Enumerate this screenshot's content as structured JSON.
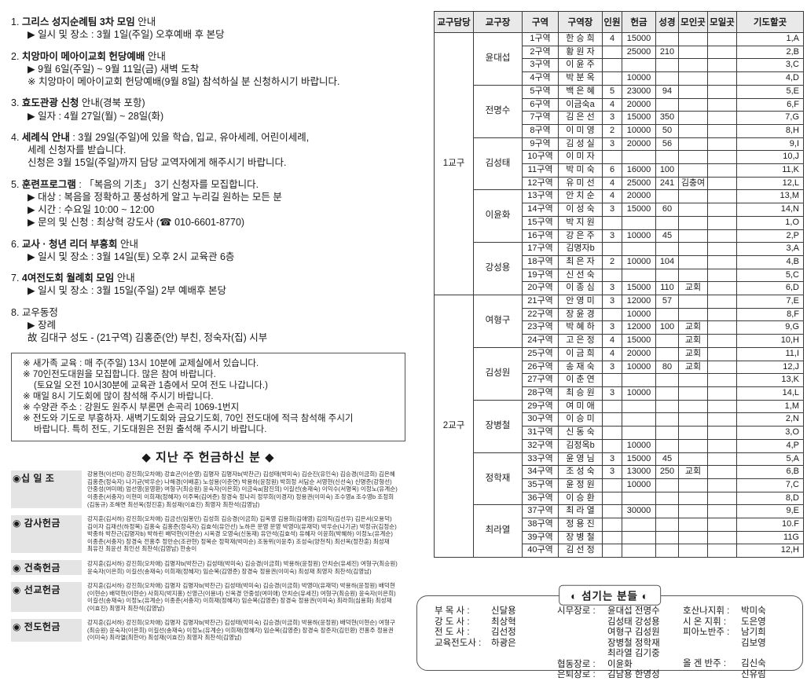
{
  "announcements": {
    "items": [
      {
        "num": "1.",
        "bold": "그리스 성지순례팀 3차 모임",
        "rest": " 안내",
        "lines": [
          {
            "t": "▶ 일시 및 장소 : 3월 1일(주일) 오후예배 후 본당",
            "i": 0
          }
        ]
      },
      {
        "num": "2.",
        "bold": "치앙마이 메아이교회 헌당예배",
        "rest": " 안내",
        "lines": [
          {
            "t": "▶ 9월 6일(주일) ~ 9월 11일(금) 새벽 도착",
            "i": 0
          },
          {
            "t": "※ 치앙마이 메아이교회 헌당예배(9월 8일) 참석하실 분 신청하시기 바랍니다.",
            "i": 0
          }
        ]
      },
      {
        "num": "3.",
        "bold": "효도관광 신청",
        "rest": " 안내(경북 포항)",
        "lines": [
          {
            "t": "▶ 일자 : 4월 27일(월) ~ 28일(화)",
            "i": 0
          }
        ]
      },
      {
        "num": "4.",
        "bold": "세례식 안내",
        "rest": " : 3월 29일(주일)에 있을 학습, 입교, 유아세례, 어린이세례,",
        "lines": [
          {
            "t": "세례 신청자를 받습니다.",
            "i": 0
          },
          {
            "t": "신청은 3월 15일(주일)까지 담당 교역자에게 해주시기 바랍니다.",
            "i": 0
          }
        ]
      },
      {
        "num": "5.",
        "bold": "훈련프로그램",
        "rest": " : 「복음의 기초」 3기 신청자를 모집합니다.",
        "lines": [
          {
            "t": "▶ 대상 : 복음을 정확하고 풍성하게 알고 누리길 원하는 모든 분",
            "i": 0
          },
          {
            "t": "▶ 시간 : 수요일 10:00 ~ 12:00",
            "i": 0
          },
          {
            "t": "▶ 문의 및 신청 : 최상혁 강도사 (☎ 010-6601-8770)",
            "i": 0
          }
        ]
      },
      {
        "num": "6.",
        "bold": "교사 · 청년 리더 부흥회",
        "rest": " 안내",
        "lines": [
          {
            "t": "▶ 일시 및 장소 : 3월 14일(토) 오후 2시 교육관 6층",
            "i": 0
          }
        ]
      },
      {
        "num": "7.",
        "bold": "4여전도회 월례회 모임",
        "rest": " 안내",
        "lines": [
          {
            "t": "▶ 일시 및 장소 : 3월 15일(주일) 2부 예배후 본당",
            "i": 0
          }
        ]
      },
      {
        "num": "8.",
        "bold": "",
        "rest": "교우동정",
        "lines": [
          {
            "t": "▶ 장례",
            "i": 0
          },
          {
            "t": "故 김대구 성도 - (21구역) 김홍준(안) 부친, 정숙자(집) 시부",
            "i": 0
          }
        ]
      }
    ]
  },
  "notice_box": {
    "lines": [
      {
        "t": "※ 새가족 교육 : 매 주(주일) 13시 10분에 교제실에서 있습니다.",
        "i": 0
      },
      {
        "t": "※ 70인전도대원을 모집합니다. 많은 참여 바랍니다.",
        "i": 0
      },
      {
        "t": "(토요일 오전 10시30분에 교육관 1층에서 모여 전도 나갑니다.)",
        "i": 1
      },
      {
        "t": "※ 매일 8시 기도회에 많이 참석해 주시기 바랍니다.",
        "i": 0
      },
      {
        "t": "※ 수양관 주소 : 강원도 원주시 부론면 손곡리 1069-1번지",
        "i": 0
      },
      {
        "t": "※ 전도와 기도로 부흥하자. 새벽기도회와 금요기도회, 70인 전도대에 적극 참석해 주시기",
        "i": 0
      },
      {
        "t": "바랍니다. 특히 전도, 기도대원은 전원 출석해 주시기 바랍니다.",
        "i": 1
      }
    ]
  },
  "offering": {
    "heading": "◆ 지난 주 헌금하신 분 ◆",
    "categories": [
      {
        "label": "◉십 일 조",
        "names": "강용현(이선미) 강진희(오차애) 강효곤(이순영) 김명자 김명자b(박찬근) 김성태(박미숙) 김순진(유인숙) 김승경(이금희) 김은혜 김홍준(정숙자) 나기균(박우순) 나해경(이배훈) 노성용(이춘연) 박용하(윤정원) 박희정 서담순 서영현(신선숙) 신명준(강형선) 안중성(여미애) 엄선영(윤영환) 여형구(최승원) 윤숙자(이은회) 이금숙a(함진의) 이길선(송재숙) 이익수(서명옥) 이정노(유계순) 이종춘(서충자) 이현미 이희재(정혜자) 이주복(김여준) 장경숙 정나리 정무희(이경자) 정용권(이미숙) 조수영a 조수영b 조정희(김동규) 조해연 최선옥(정진훈) 최성재(이효진) 최영자 최찬석(김영남)"
      },
      {
        "label": "◉ 감사헌금",
        "names": "강지훈(김서하) 강진희(오차애) 김금선(임봉민) 김성희 김승경(이금희) 김옥영 김용희(김애영) 김의직(김선우) 김은서(오용덕) 김이자 김재선(하정복) 김홍숙 김홍준(정숙자) 김효석(유안선) 노하은 문영 문영 박영미(유재덕) 박우순(나기균) 박정규(김정순) 박종하 박찬근(김명자b) 박하린 배덕현(이현순) 시옥경 오영숙(신동재) 유안석(김효석) 유혜자 이윤희(박혜하) 이정노(유계순) 이종춘(서충자) 장경숙 전홍주 정만순(조관현) 정복순 정학재(박미순) 조동위(이윤주) 조성숙(양천직) 최선옥(정찬훈) 최성재 최유진 최윤선 최인선 최찬석(김영남) 한송이"
      },
      {
        "label": "◉ 건축헌금",
        "names": "강지훈(김서하) 강진희(오차애) 김명자b(박찬근) 김성태(박미숙) 김승경(이금희) 박용하(윤정원) 안치순(유세진) 여형구(최승원) 윤숙자(이은희) 이길선(송재숙) 이희재(정혜자) 임순복(김영준) 장경숙 정용권(이미숙) 최성재 최영자 최찬석(김영남)"
      },
      {
        "label": "◉ 선교헌금",
        "names": "강지훈(김서하) 강진희(오차애) 김명자 김명자b(박찬근) 김성태(박미숙) 김승경(이금희) 박영미(유재덕) 박용하(윤정원) 배덕현(이현순) 배덕현(이현순) 사회지(박지홍) 신영근(이용녀) 신옥경 안중성(여미애) 안치순(유세진) 여형구(최승원) 윤숙자(이은희) 이길선(송재숙) 이정노(유계순) 이종춘(서충자) 이희재(정혜자) 임순복(김영준) 장경숙 정용권(이미숙) 최라희(심용화) 최성재(이효진) 최영자 최찬석(김영남)"
      },
      {
        "label": "◉ 전도헌금",
        "names": "강지훈(김서하) 강진희(오차애) 김명자 김명자b(박찬근) 김성태(박미숙) 김승경(이금희) 박용하(윤정원) 배덕현(이현순) 여형구(최승원) 윤숙자(이은희) 이길선(송재숙) 이정노(유계순) 이희재(정혜자) 임순복(김영준) 장경숙 장준자(김민환) 전홍주 정용권(이미숙) 최라열(최한아) 최성재(이효진) 최영자 최찬석(김영남)"
      }
    ]
  },
  "table": {
    "headers": [
      "교구담당",
      "교구장",
      "구역",
      "구역장",
      "인원",
      "헌금",
      "성경",
      "모인곳",
      "모일곳",
      "기도할곳"
    ],
    "groups": [
      {
        "name": "1교구",
        "leaders": [
          "윤대섭",
          "전명수",
          "김성태",
          "이윤화",
          "강성용"
        ]
      },
      {
        "name": "2교구",
        "leaders": [
          "여형구",
          "김성원",
          "장병철",
          "정학재",
          "최라열"
        ]
      }
    ],
    "rows": [
      [
        "1구역",
        "한 승 희",
        "4",
        "15000",
        "",
        "",
        "",
        "1,A"
      ],
      [
        "2구역",
        "황 원 자",
        "",
        "25000",
        "210",
        "",
        "",
        "2,B"
      ],
      [
        "3구역",
        "이 윤 주",
        "",
        "",
        "",
        "",
        "",
        "3,C"
      ],
      [
        "4구역",
        "박 분 옥",
        "",
        "10000",
        "",
        "",
        "",
        "4,D"
      ],
      [
        "5구역",
        "백 은 혜",
        "5",
        "23000",
        "94",
        "",
        "",
        "5,E"
      ],
      [
        "6구역",
        "이금숙a",
        "4",
        "20000",
        "",
        "",
        "",
        "6,F"
      ],
      [
        "7구역",
        "김 은 선",
        "3",
        "15000",
        "350",
        "",
        "",
        "7,G"
      ],
      [
        "8구역",
        "이 미 영",
        "2",
        "10000",
        "50",
        "",
        "",
        "8,H"
      ],
      [
        "9구역",
        "김 성 실",
        "3",
        "20000",
        "56",
        "",
        "",
        "9,I"
      ],
      [
        "10구역",
        "이 미 자",
        "",
        "",
        "",
        "",
        "",
        "10,J"
      ],
      [
        "11구역",
        "박 미 숙",
        "6",
        "16000",
        "100",
        "",
        "",
        "11,K"
      ],
      [
        "12구역",
        "유 미 선",
        "4",
        "25000",
        "241",
        "김충여",
        "",
        "12,L"
      ],
      [
        "13구역",
        "안 치 순",
        "4",
        "20000",
        "",
        "",
        "",
        "13,M"
      ],
      [
        "14구역",
        "이 성 숙",
        "3",
        "15000",
        "60",
        "",
        "",
        "14,N"
      ],
      [
        "15구역",
        "박 지 원",
        "",
        "",
        "",
        "",
        "",
        "1,O"
      ],
      [
        "16구역",
        "강 은 주",
        "3",
        "10000",
        "45",
        "",
        "",
        "2,P"
      ],
      [
        "17구역",
        "김명자b",
        "",
        "",
        "",
        "",
        "",
        "3,A"
      ],
      [
        "18구역",
        "최 은 자",
        "2",
        "10000",
        "104",
        "",
        "",
        "4,B"
      ],
      [
        "19구역",
        "신 선 숙",
        "",
        "",
        "",
        "",
        "",
        "5,C"
      ],
      [
        "20구역",
        "이 종 심",
        "3",
        "15000",
        "110",
        "교회",
        "",
        "6,D"
      ],
      [
        "21구역",
        "안 영 미",
        "3",
        "12000",
        "57",
        "",
        "",
        "7,E"
      ],
      [
        "22구역",
        "장 윤 경",
        "",
        "10000",
        "",
        "",
        "",
        "8,F"
      ],
      [
        "23구역",
        "박 혜 하",
        "3",
        "12000",
        "100",
        "교회",
        "",
        "9,G"
      ],
      [
        "24구역",
        "고 은 정",
        "4",
        "15000",
        "",
        "교회",
        "",
        "10,H"
      ],
      [
        "25구역",
        "이 금 희",
        "4",
        "20000",
        "",
        "교회",
        "",
        "11,I"
      ],
      [
        "26구역",
        "송 재 숙",
        "3",
        "10000",
        "80",
        "교회",
        "",
        "12,J"
      ],
      [
        "27구역",
        "이 춘 연",
        "",
        "",
        "",
        "",
        "",
        "13,K"
      ],
      [
        "28구역",
        "최 승 원",
        "3",
        "10000",
        "",
        "",
        "",
        "14,L"
      ],
      [
        "29구역",
        "여 미 애",
        "",
        "",
        "",
        "",
        "",
        "1,M"
      ],
      [
        "30구역",
        "이 승 미",
        "",
        "",
        "",
        "",
        "",
        "2,N"
      ],
      [
        "31구역",
        "신 동 숙",
        "",
        "",
        "",
        "",
        "",
        "3,O"
      ],
      [
        "32구역",
        "김정옥b",
        "",
        "10000",
        "",
        "",
        "",
        "4,P"
      ],
      [
        "33구역",
        "윤 영 님",
        "3",
        "15000",
        "45",
        "",
        "",
        "5,A"
      ],
      [
        "34구역",
        "조 성 숙",
        "3",
        "13000",
        "250",
        "교회",
        "",
        "6,B"
      ],
      [
        "35구역",
        "윤 정 원",
        "",
        "10000",
        "",
        "",
        "",
        "7,C"
      ],
      [
        "36구역",
        "이 승 환",
        "",
        "",
        "",
        "",
        "",
        "8,D"
      ],
      [
        "37구역",
        "최 라 열",
        "",
        "30000",
        "",
        "",
        "",
        "9,E"
      ],
      [
        "38구역",
        "정 용 진",
        "",
        "",
        "",
        "",
        "",
        "10.F"
      ],
      [
        "39구역",
        "장 병 철",
        "",
        "",
        "",
        "",
        "",
        "11G"
      ],
      [
        "40구역",
        "김 선 정",
        "",
        "",
        "",
        "",
        "",
        "12,H"
      ]
    ]
  },
  "servants": {
    "title": "◐ 섬기는 분들 ◐",
    "col1": [
      {
        "label": "부  목  사 :",
        "value": "신달용",
        "gap": false
      },
      {
        "label": "강  도  사 :",
        "value": "최상혁",
        "gap": false
      },
      {
        "label": "전  도  사 :",
        "value": "김선정",
        "gap": false
      },
      {
        "label": "교육전도사 :",
        "value": "하광은",
        "gap": false
      }
    ],
    "col2": [
      {
        "label": "시무장로 :",
        "value": "윤대섭 전명수",
        "gap": false
      },
      {
        "label": "",
        "value": "김성태 강성용",
        "gap": false
      },
      {
        "label": "",
        "value": "여형구 김성원",
        "gap": false
      },
      {
        "label": "",
        "value": "장병철 정학재",
        "gap": false
      },
      {
        "label": "",
        "value": "최라열 김기중",
        "gap": false
      },
      {
        "label": "협동장로 :",
        "value": "이윤화",
        "gap": false
      },
      {
        "label": "은퇴장로 :",
        "value": "김남용 한영성",
        "gap": false
      }
    ],
    "col3": [
      {
        "label": "호산나지휘 :",
        "value": "박미숙",
        "gap": false
      },
      {
        "label": "시 온 지휘 :",
        "value": "도은영",
        "gap": false
      },
      {
        "label": "피아노반주 :",
        "value": "남기희",
        "gap": false
      },
      {
        "label": "",
        "value": "김보영",
        "gap": false
      },
      {
        "label": "올 겐 반주 :",
        "value": "김신숙",
        "gap": true
      },
      {
        "label": "",
        "value": "신유림",
        "gap": false
      }
    ]
  },
  "colors": {
    "header_bg": "#e9e9e9",
    "label_bg": "#e4e4e4",
    "border": "#3a3a3a"
  }
}
